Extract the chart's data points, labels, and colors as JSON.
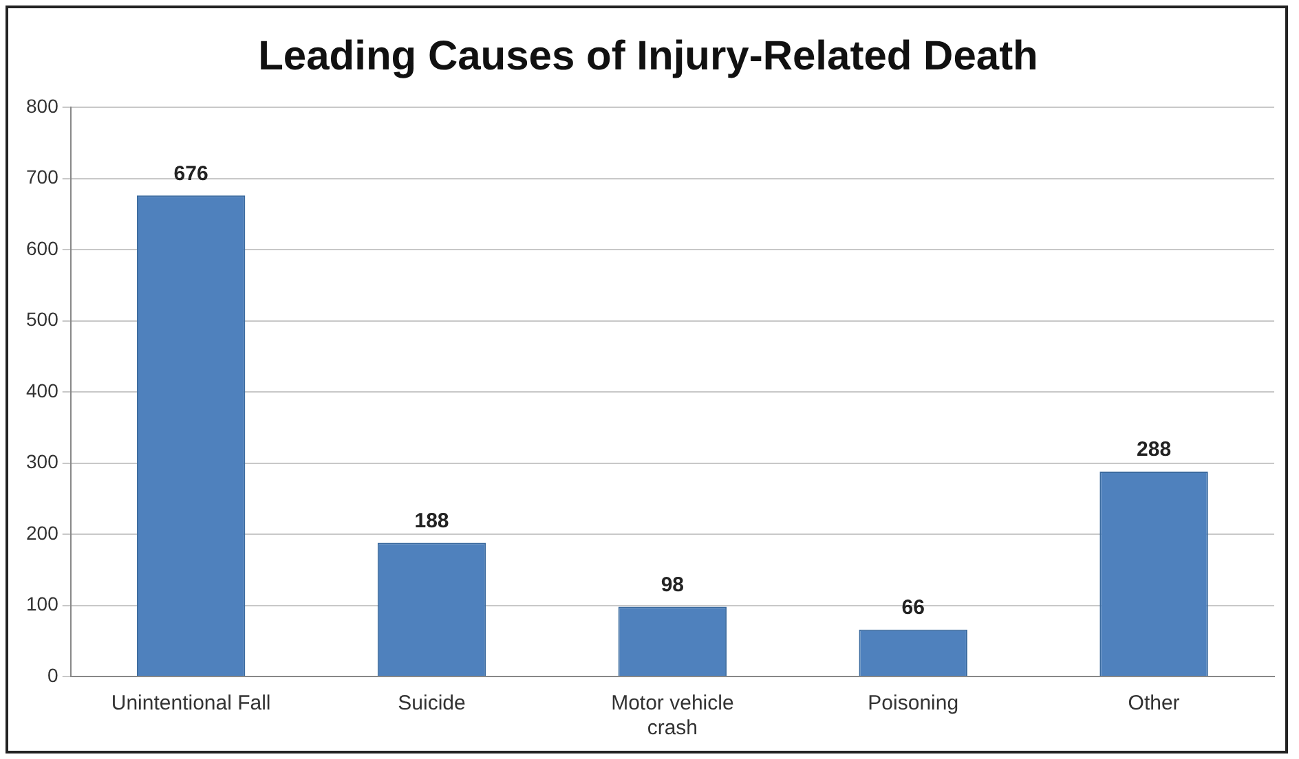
{
  "chart_data": {
    "type": "bar",
    "title": "Leading Causes of Injury-Related Death",
    "categories": [
      "Unintentional Fall",
      "Suicide",
      "Motor vehicle crash",
      "Poisoning",
      "Other"
    ],
    "values": [
      676,
      188,
      98,
      66,
      288
    ],
    "color": "#4f81bd",
    "ylim": [
      0,
      800
    ],
    "yticks": [
      0,
      100,
      200,
      300,
      400,
      500,
      600,
      700,
      800
    ],
    "grid": "y",
    "data_labels": true,
    "legend": false
  }
}
